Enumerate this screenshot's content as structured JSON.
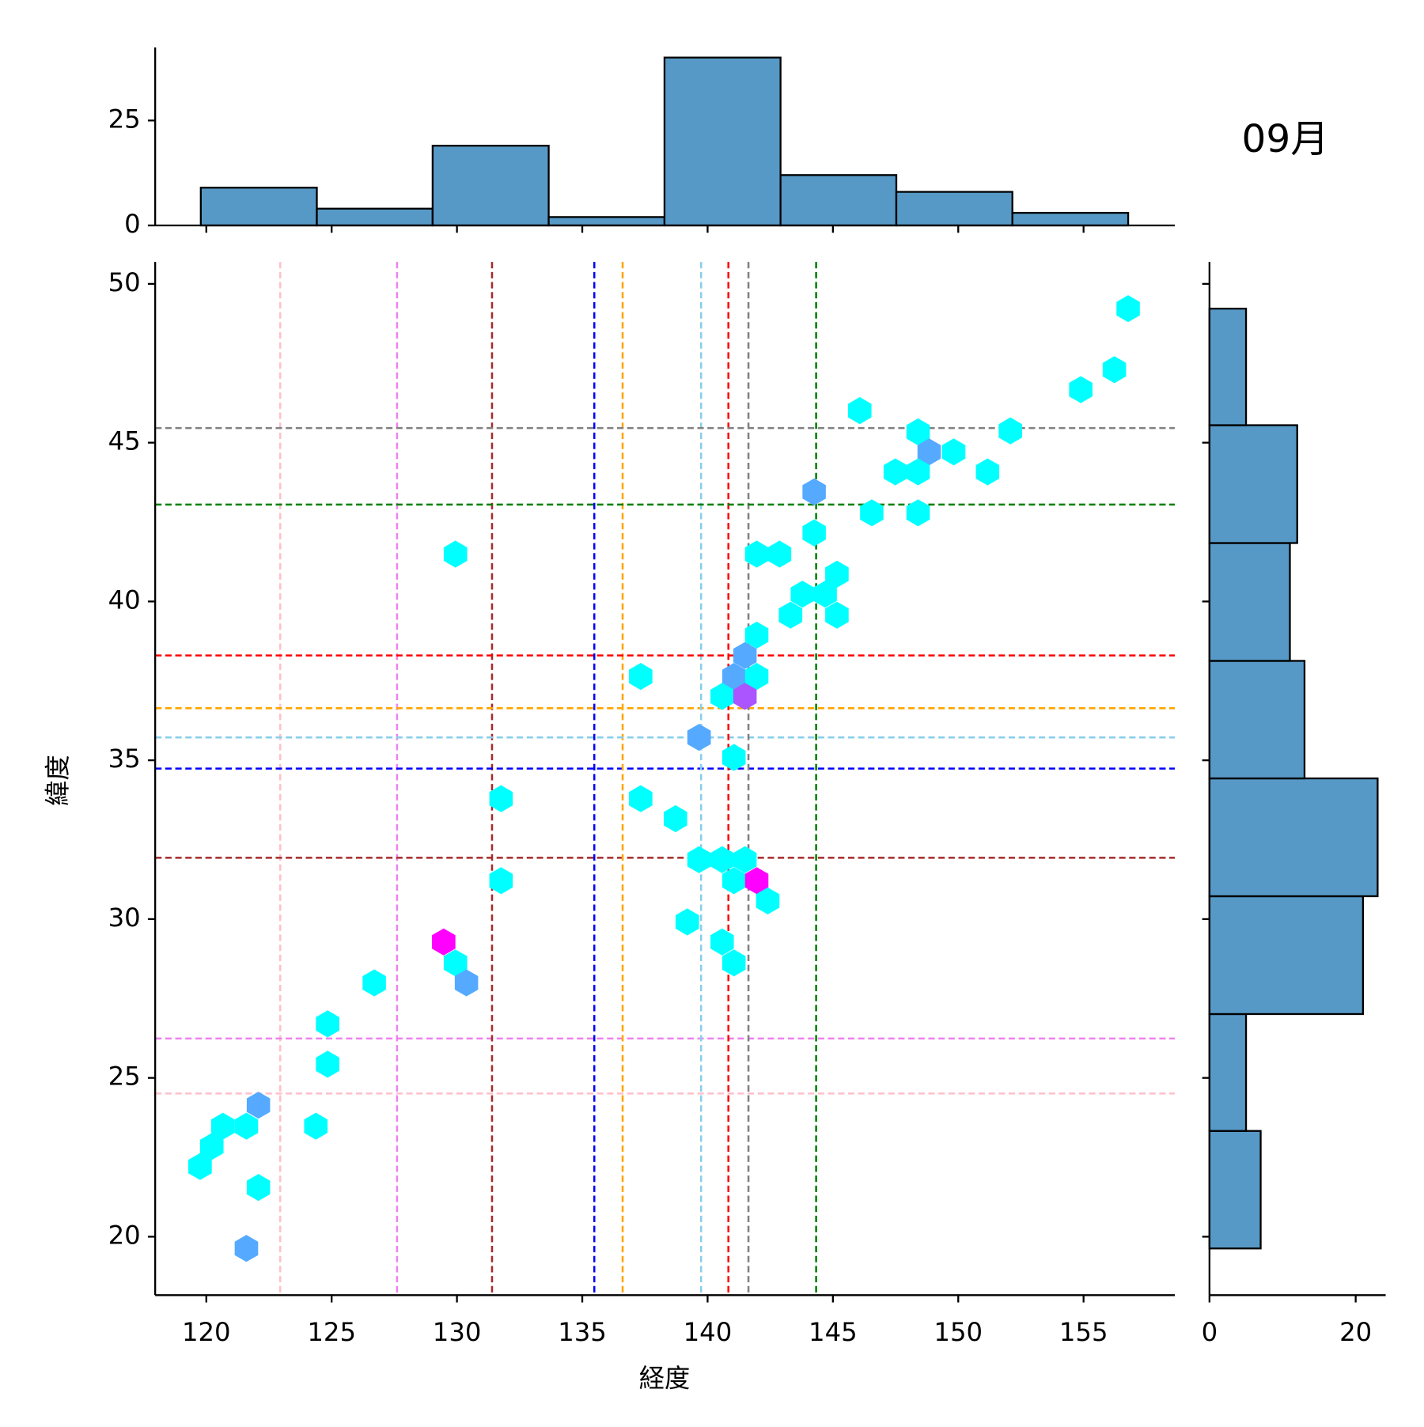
{
  "chart_data": [
    {
      "type": "hexbin",
      "title": "09月",
      "xlabel": "経度",
      "ylabel": "緯度",
      "xlim": [
        117.96,
        158.64
      ],
      "ylim": [
        18.16,
        50.69
      ],
      "xticks": [
        120,
        125,
        130,
        135,
        140,
        145,
        150,
        155
      ],
      "yticks": [
        20,
        25,
        30,
        35,
        40,
        45,
        50
      ],
      "cmap": "cool",
      "x": [
        156.78,
        156.23,
        154.89,
        146.07,
        148.4,
        152.08,
        148.84,
        149.82,
        147.49,
        148.4,
        151.17,
        144.25,
        146.55,
        148.4,
        144.25,
        129.94,
        141.96,
        142.87,
        145.16,
        143.78,
        144.69,
        143.31,
        145.16,
        141.96,
        141.49,
        141.05,
        141.96,
        137.33,
        140.58,
        141.49,
        139.66,
        141.05,
        131.76,
        137.33,
        138.72,
        139.66,
        140.58,
        141.49,
        141.05,
        141.96,
        131.76,
        142.4,
        139.19,
        140.58,
        129.47,
        129.94,
        130.38,
        141.05,
        126.7,
        124.84,
        124.84,
        124.37,
        120.66,
        121.6,
        122.08,
        120.22,
        119.75,
        122.08,
        121.6
      ],
      "y": [
        49.22,
        47.3,
        46.67,
        46.01,
        45.34,
        45.37,
        44.71,
        44.71,
        44.08,
        44.08,
        44.08,
        43.45,
        42.79,
        42.79,
        42.16,
        41.49,
        41.49,
        41.49,
        40.86,
        40.23,
        40.23,
        39.57,
        39.57,
        38.94,
        38.3,
        37.64,
        37.64,
        37.64,
        37.01,
        37.01,
        35.72,
        35.09,
        33.79,
        33.79,
        33.16,
        31.87,
        31.87,
        31.87,
        31.21,
        31.21,
        31.21,
        30.57,
        29.91,
        29.28,
        29.28,
        28.62,
        27.99,
        28.62,
        27.99,
        26.7,
        25.43,
        23.48,
        23.48,
        23.48,
        24.14,
        22.84,
        22.21,
        21.55,
        19.63
      ],
      "counts": [
        1,
        1,
        1,
        1,
        1,
        1,
        2,
        1,
        1,
        1,
        1,
        2,
        1,
        1,
        1,
        1,
        1,
        1,
        1,
        1,
        1,
        1,
        1,
        1,
        2,
        2,
        1,
        1,
        1,
        3,
        2,
        1,
        1,
        1,
        1,
        1,
        1,
        1,
        1,
        4,
        1,
        1,
        1,
        1,
        4,
        1,
        2,
        1,
        1,
        1,
        1,
        1,
        1,
        1,
        2,
        1,
        1,
        1,
        2
      ],
      "reference_points": {
        "x": [
          122.95,
          127.61,
          131.4,
          135.48,
          136.61,
          139.74,
          140.83,
          141.63,
          144.33
        ],
        "y": [
          24.51,
          26.24,
          31.93,
          34.74,
          36.64,
          35.72,
          38.3,
          45.46,
          43.05
        ],
        "colors": [
          "pink",
          "violet",
          "brown",
          "blue",
          "orange",
          "skyblue",
          "red",
          "gray",
          "green"
        ]
      }
    },
    {
      "type": "histogram",
      "orientation": "vertical",
      "color": "#5799c6",
      "bins": [
        119.78,
        124.41,
        129.03,
        133.66,
        138.28,
        142.91,
        147.53,
        152.16,
        156.78
      ],
      "counts": [
        9,
        4,
        19,
        2,
        40,
        12,
        8,
        3
      ],
      "ylim": [
        0,
        42.4
      ],
      "yticks": [
        0,
        25
      ]
    },
    {
      "type": "histogram",
      "orientation": "horizontal",
      "color": "#5799c6",
      "bins": [
        19.63,
        23.33,
        27.01,
        30.72,
        34.43,
        38.13,
        41.84,
        45.55,
        49.22
      ],
      "counts": [
        7,
        5,
        21,
        23,
        13,
        11,
        12,
        5
      ],
      "xlim": [
        0,
        24.1
      ],
      "xticks": [
        0,
        20
      ]
    }
  ]
}
